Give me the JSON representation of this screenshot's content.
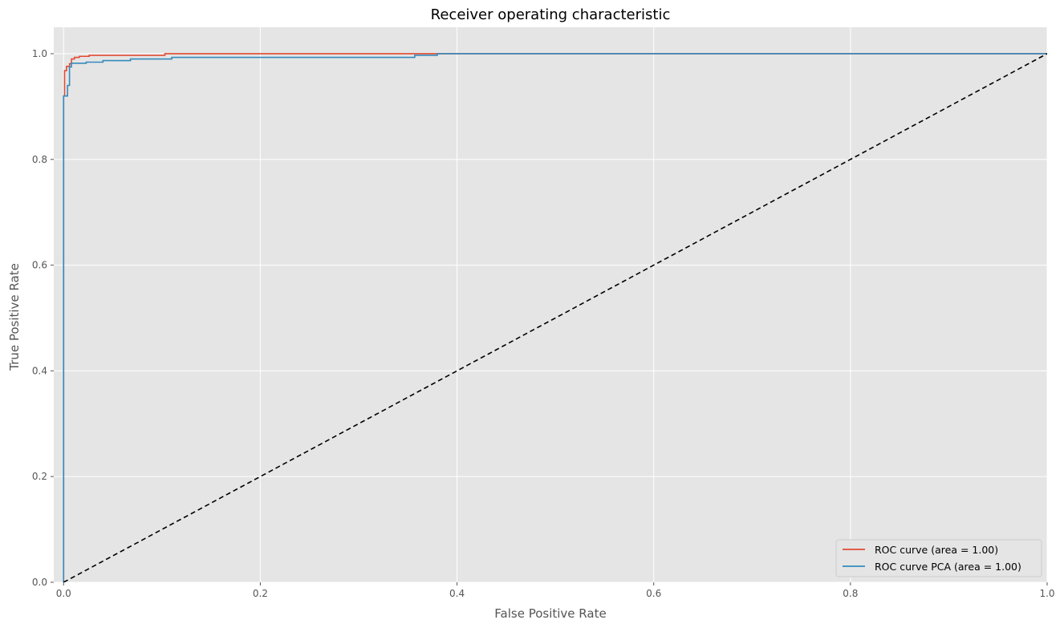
{
  "chart_data": {
    "type": "line",
    "title": "Receiver operating characteristic",
    "xlabel": "False Positive Rate",
    "ylabel": "True Positive Rate",
    "xlim": [
      -0.01,
      1.0
    ],
    "ylim": [
      0.0,
      1.05
    ],
    "grid": true,
    "legend_position": "bottom-right",
    "x_ticks": [
      {
        "value": 0.0,
        "label": "0.0"
      },
      {
        "value": 0.2,
        "label": "0.2"
      },
      {
        "value": 0.4,
        "label": "0.4"
      },
      {
        "value": 0.6,
        "label": "0.6"
      },
      {
        "value": 0.8,
        "label": "0.8"
      },
      {
        "value": 1.0,
        "label": "1.0"
      }
    ],
    "y_ticks": [
      {
        "value": 0.0,
        "label": "0.0"
      },
      {
        "value": 0.2,
        "label": "0.2"
      },
      {
        "value": 0.4,
        "label": "0.4"
      },
      {
        "value": 0.6,
        "label": "0.6"
      },
      {
        "value": 0.8,
        "label": "0.8"
      },
      {
        "value": 1.0,
        "label": "1.0"
      }
    ],
    "series": [
      {
        "name": "ROC curve (area = 1.00)",
        "color": "#E24A33",
        "style": "solid",
        "x": [
          0.0,
          0.0,
          0.001,
          0.001,
          0.003,
          0.003,
          0.006,
          0.006,
          0.008,
          0.008,
          0.011,
          0.011,
          0.016,
          0.016,
          0.026,
          0.026,
          0.103,
          0.103,
          0.38,
          0.38,
          1.0
        ],
        "y": [
          0.0,
          0.92,
          0.92,
          0.968,
          0.968,
          0.976,
          0.976,
          0.981,
          0.981,
          0.99,
          0.99,
          0.993,
          0.993,
          0.995,
          0.995,
          0.997,
          0.997,
          1.0,
          1.0,
          1.0,
          1.0
        ]
      },
      {
        "name": "ROC curve PCA (area = 1.00)",
        "color": "#348ABD",
        "style": "solid",
        "x": [
          0.0,
          0.0,
          0.004,
          0.004,
          0.006,
          0.006,
          0.008,
          0.008,
          0.023,
          0.023,
          0.04,
          0.04,
          0.068,
          0.068,
          0.11,
          0.11,
          0.357,
          0.357,
          0.38,
          0.38,
          1.0
        ],
        "y": [
          0.0,
          0.92,
          0.92,
          0.94,
          0.94,
          0.975,
          0.975,
          0.982,
          0.982,
          0.984,
          0.984,
          0.987,
          0.987,
          0.99,
          0.99,
          0.993,
          0.993,
          0.997,
          0.997,
          1.0,
          1.0
        ]
      },
      {
        "name": "chance",
        "color": "#000000",
        "style": "dashed",
        "x": [
          0.0,
          1.0
        ],
        "y": [
          0.0,
          1.0
        ]
      }
    ],
    "legend": [
      {
        "label": "ROC curve (area = 1.00)",
        "color": "#E24A33"
      },
      {
        "label": "ROC curve PCA (area = 1.00)",
        "color": "#348ABD"
      }
    ]
  },
  "colors": {
    "plot_background": "#E5E5E5",
    "grid": "#FFFFFF",
    "tick_text": "#555555"
  }
}
